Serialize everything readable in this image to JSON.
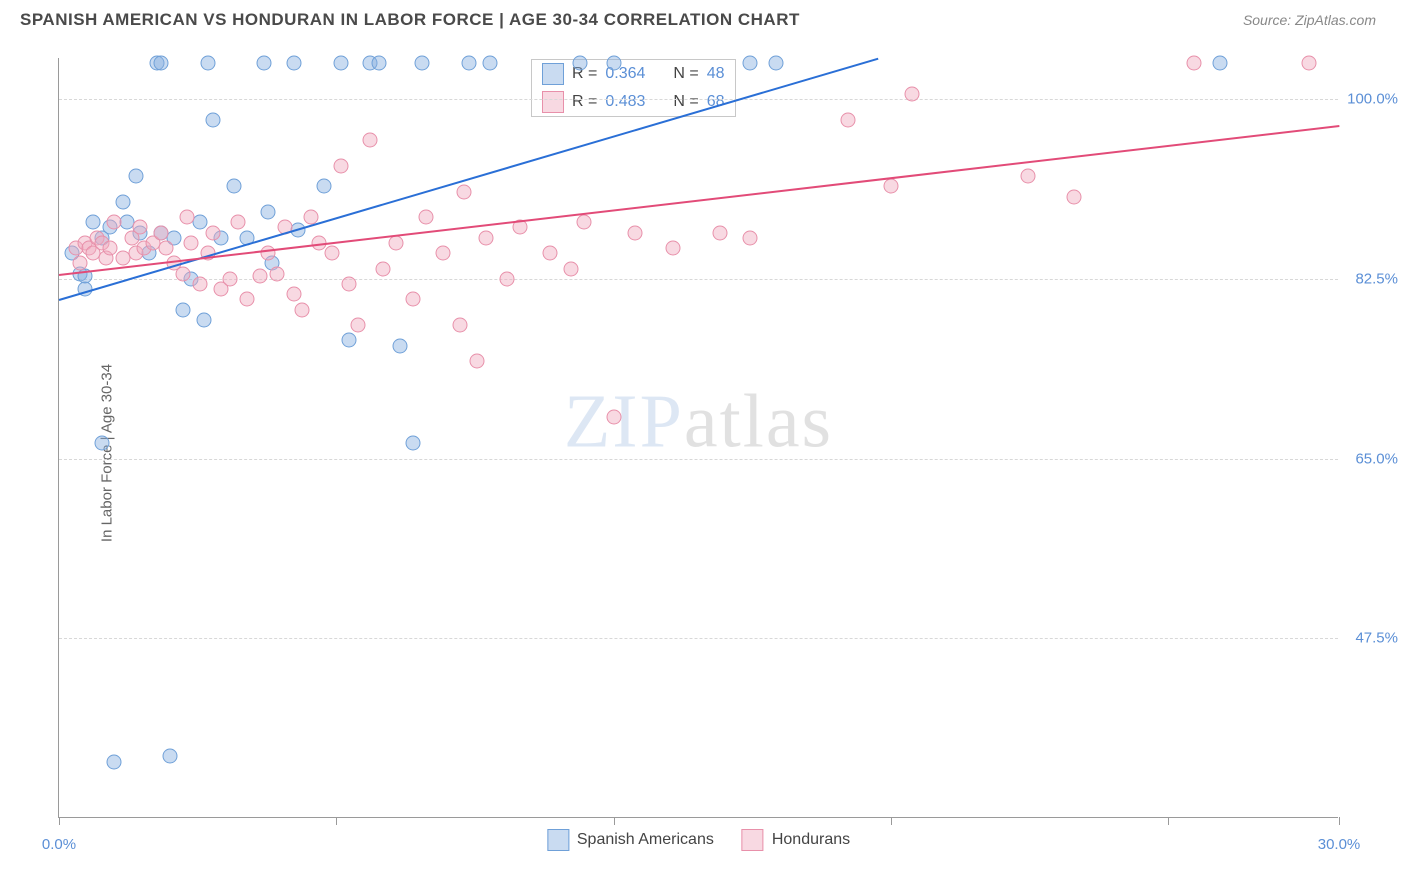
{
  "header": {
    "title": "SPANISH AMERICAN VS HONDURAN IN LABOR FORCE | AGE 30-34 CORRELATION CHART",
    "source": "Source: ZipAtlas.com"
  },
  "chart": {
    "type": "scatter",
    "ylabel": "In Labor Force | Age 30-34",
    "xlim": [
      0,
      30
    ],
    "ylim": [
      30,
      104
    ],
    "xtick_positions": [
      0,
      6.5,
      13,
      19.5,
      26,
      30
    ],
    "xtick_labels": {
      "0": "0.0%",
      "30": "30.0%"
    },
    "ytick_positions": [
      47.5,
      65.0,
      82.5,
      100.0
    ],
    "ytick_labels": [
      "47.5%",
      "65.0%",
      "82.5%",
      "100.0%"
    ],
    "grid_color": "#d8d8d8",
    "axis_color": "#9a9a9a",
    "background_color": "#ffffff",
    "watermark": {
      "part1": "ZIP",
      "part2": "atlas"
    },
    "series": [
      {
        "name": "Spanish Americans",
        "color_fill": "rgba(135,175,225,0.45)",
        "color_stroke": "#6fa0d8",
        "trend_color": "#2a6fd6",
        "R": "0.364",
        "N": "48",
        "trend": {
          "x1": 0,
          "y1": 80.5,
          "x2": 19.2,
          "y2": 104
        },
        "points": [
          [
            0.3,
            85
          ],
          [
            0.5,
            83
          ],
          [
            0.6,
            81.5
          ],
          [
            0.6,
            82.8
          ],
          [
            0.8,
            88
          ],
          [
            1.0,
            66.5
          ],
          [
            1.0,
            86.5
          ],
          [
            1.2,
            87.5
          ],
          [
            1.3,
            35.5
          ],
          [
            1.5,
            90
          ],
          [
            1.6,
            88
          ],
          [
            1.8,
            92.5
          ],
          [
            1.9,
            87
          ],
          [
            2.1,
            85
          ],
          [
            2.3,
            103.5
          ],
          [
            2.4,
            103.5
          ],
          [
            2.4,
            87
          ],
          [
            2.6,
            36
          ],
          [
            2.7,
            86.5
          ],
          [
            2.9,
            79.5
          ],
          [
            3.1,
            82.5
          ],
          [
            3.3,
            88
          ],
          [
            3.4,
            78.5
          ],
          [
            3.5,
            103.5
          ],
          [
            3.6,
            98
          ],
          [
            3.8,
            86.5
          ],
          [
            4.1,
            91.5
          ],
          [
            4.4,
            86.5
          ],
          [
            4.8,
            103.5
          ],
          [
            4.9,
            89
          ],
          [
            5.0,
            84
          ],
          [
            5.5,
            103.5
          ],
          [
            5.6,
            87.3
          ],
          [
            6.2,
            91.5
          ],
          [
            6.6,
            103.5
          ],
          [
            6.8,
            76.5
          ],
          [
            7.3,
            103.5
          ],
          [
            7.5,
            103.5
          ],
          [
            8.0,
            76
          ],
          [
            8.3,
            66.5
          ],
          [
            8.5,
            103.5
          ],
          [
            9.6,
            103.5
          ],
          [
            10.1,
            103.5
          ],
          [
            12.2,
            103.5
          ],
          [
            13.0,
            103.5
          ],
          [
            16.2,
            103.5
          ],
          [
            16.8,
            103.5
          ],
          [
            27.2,
            103.5
          ]
        ]
      },
      {
        "name": "Hondurans",
        "color_fill": "rgba(240,170,190,0.45)",
        "color_stroke": "#e890aa",
        "trend_color": "#e24b78",
        "R": "0.483",
        "N": "68",
        "trend": {
          "x1": 0,
          "y1": 83,
          "x2": 30,
          "y2": 97.5
        },
        "points": [
          [
            0.4,
            85.5
          ],
          [
            0.5,
            84
          ],
          [
            0.6,
            86
          ],
          [
            0.7,
            85.5
          ],
          [
            0.8,
            85
          ],
          [
            0.9,
            86.5
          ],
          [
            1.0,
            86
          ],
          [
            1.1,
            84.5
          ],
          [
            1.2,
            85.5
          ],
          [
            1.3,
            88
          ],
          [
            1.5,
            84.5
          ],
          [
            1.7,
            86.5
          ],
          [
            1.8,
            85
          ],
          [
            1.9,
            87.5
          ],
          [
            2.0,
            85.5
          ],
          [
            2.2,
            86
          ],
          [
            2.4,
            87
          ],
          [
            2.5,
            85.5
          ],
          [
            2.7,
            84
          ],
          [
            2.9,
            83
          ],
          [
            3.0,
            88.5
          ],
          [
            3.1,
            86
          ],
          [
            3.3,
            82
          ],
          [
            3.5,
            85
          ],
          [
            3.6,
            87
          ],
          [
            3.8,
            81.5
          ],
          [
            4.0,
            82.5
          ],
          [
            4.2,
            88
          ],
          [
            4.4,
            80.5
          ],
          [
            4.7,
            82.8
          ],
          [
            4.9,
            85
          ],
          [
            5.1,
            83
          ],
          [
            5.3,
            87.5
          ],
          [
            5.5,
            81
          ],
          [
            5.7,
            79.5
          ],
          [
            5.9,
            88.5
          ],
          [
            6.1,
            86
          ],
          [
            6.4,
            85
          ],
          [
            6.6,
            93.5
          ],
          [
            6.8,
            82
          ],
          [
            7.0,
            78
          ],
          [
            7.3,
            96
          ],
          [
            7.6,
            83.5
          ],
          [
            7.9,
            86
          ],
          [
            8.3,
            80.5
          ],
          [
            8.6,
            88.5
          ],
          [
            9.0,
            85
          ],
          [
            9.4,
            78
          ],
          [
            9.5,
            91
          ],
          [
            9.8,
            74.5
          ],
          [
            10.0,
            86.5
          ],
          [
            10.5,
            82.5
          ],
          [
            10.8,
            87.5
          ],
          [
            11.5,
            85
          ],
          [
            12.0,
            83.5
          ],
          [
            12.3,
            88
          ],
          [
            13.0,
            69
          ],
          [
            13.5,
            87
          ],
          [
            14.4,
            85.5
          ],
          [
            15.5,
            87
          ],
          [
            16.2,
            86.5
          ],
          [
            18.5,
            98
          ],
          [
            19.5,
            91.5
          ],
          [
            20.0,
            100.5
          ],
          [
            22.7,
            92.5
          ],
          [
            23.8,
            90.5
          ],
          [
            26.6,
            103.5
          ],
          [
            29.3,
            103.5
          ]
        ]
      }
    ],
    "legend_top": {
      "rows": [
        {
          "swatch_fill": "rgba(135,175,225,0.45)",
          "swatch_stroke": "#6fa0d8",
          "r_label": "R =",
          "r_val": "0.364",
          "n_label": "N =",
          "n_val": "48"
        },
        {
          "swatch_fill": "rgba(240,170,190,0.45)",
          "swatch_stroke": "#e890aa",
          "r_label": "R =",
          "r_val": "0.483",
          "n_label": "N =",
          "n_val": "68"
        }
      ]
    },
    "legend_bottom": [
      {
        "swatch_fill": "rgba(135,175,225,0.45)",
        "swatch_stroke": "#6fa0d8",
        "label": "Spanish Americans"
      },
      {
        "swatch_fill": "rgba(240,170,190,0.45)",
        "swatch_stroke": "#e890aa",
        "label": "Hondurans"
      }
    ]
  }
}
